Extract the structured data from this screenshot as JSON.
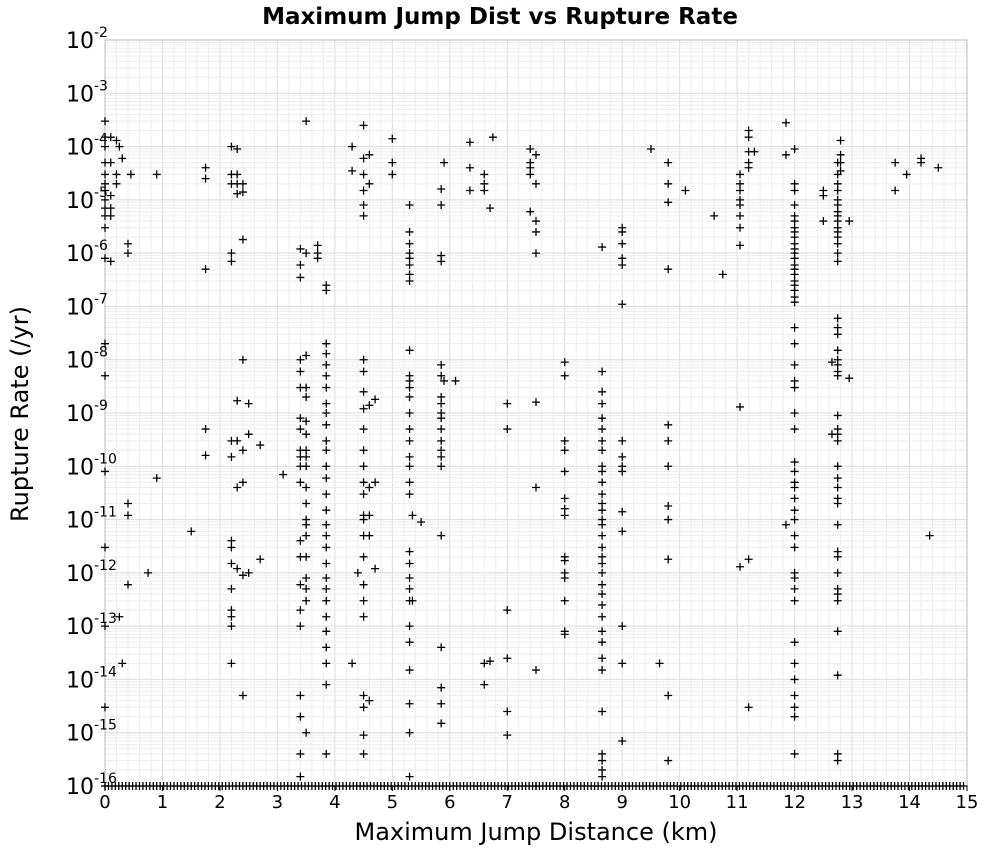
{
  "chart_data": {
    "type": "scatter",
    "title": "Maximum Jump Dist vs Rupture Rate",
    "xlabel": "Maximum Jump Distance (km)",
    "ylabel": "Rupture Rate (/yr)",
    "xlim": [
      0,
      15
    ],
    "ylim": [
      1e-16,
      0.01
    ],
    "yscale": "log",
    "grid": true,
    "marker": "+",
    "x_ticks": [
      "0",
      "1",
      "2",
      "3",
      "4",
      "5",
      "6",
      "7",
      "8",
      "9",
      "10",
      "11",
      "12",
      "13",
      "14",
      "15"
    ],
    "y_ticks": [
      {
        "base": "10",
        "exp": "-16"
      },
      {
        "base": "10",
        "exp": "-15"
      },
      {
        "base": "10",
        "exp": "-14"
      },
      {
        "base": "10",
        "exp": "-13"
      },
      {
        "base": "10",
        "exp": "-12"
      },
      {
        "base": "10",
        "exp": "-11"
      },
      {
        "base": "10",
        "exp": "-10"
      },
      {
        "base": "10",
        "exp": "-9"
      },
      {
        "base": "10",
        "exp": "-8"
      },
      {
        "base": "10",
        "exp": "-7"
      },
      {
        "base": "10",
        "exp": "-6"
      },
      {
        "base": "10",
        "exp": "-5"
      },
      {
        "base": "10",
        "exp": "-4"
      },
      {
        "base": "10",
        "exp": "-3"
      },
      {
        "base": "10",
        "exp": "-2"
      }
    ],
    "clusters": [
      {
        "x": 0.0,
        "y": [
          0.0003,
          0.00015,
          0.0001,
          5e-05,
          3e-05,
          2e-05,
          1.5e-05,
          1e-05,
          7e-06,
          5e-06,
          3e-06,
          8e-07,
          2e-08,
          5e-09,
          8e-11,
          3e-12,
          1e-13,
          3e-15,
          1e-16
        ]
      },
      {
        "x": 0.1,
        "y": [
          0.00015,
          5e-05,
          1.2e-05,
          7e-06,
          5e-06,
          7e-07
        ]
      },
      {
        "x": 0.2,
        "y": [
          0.00013,
          3e-05,
          2e-05
        ]
      },
      {
        "x": 0.25,
        "y": [
          0.0001,
          1.5e-13
        ]
      },
      {
        "x": 0.3,
        "y": [
          6e-05,
          2e-14
        ]
      },
      {
        "x": 0.4,
        "y": [
          1.5e-06,
          1e-06,
          2e-11,
          1.2e-11,
          6e-13
        ]
      },
      {
        "x": 0.45,
        "y": [
          3e-05
        ]
      },
      {
        "x": 0.75,
        "y": [
          1e-12
        ]
      },
      {
        "x": 0.9,
        "y": [
          3e-05,
          6e-11
        ]
      },
      {
        "x": 1.5,
        "y": [
          6e-12
        ]
      },
      {
        "x": 1.75,
        "y": [
          4e-05,
          2.5e-05,
          5e-07,
          5e-10,
          1.6e-10
        ]
      },
      {
        "x": 2.2,
        "y": [
          0.0001,
          3e-05,
          2e-05,
          1e-06,
          7e-07,
          3e-10,
          1.5e-10,
          4e-12,
          3e-12,
          1.5e-12,
          5e-13,
          2e-13,
          1.5e-13,
          1e-13,
          2e-14
        ]
      },
      {
        "x": 2.3,
        "y": [
          9e-05,
          3e-05,
          2e-05,
          1.3e-05,
          1.7e-09,
          3e-10,
          4e-11,
          1.2e-12
        ]
      },
      {
        "x": 2.4,
        "y": [
          2e-05,
          1.4e-05,
          1.8e-06,
          1e-08,
          2e-10,
          5e-11,
          9e-13,
          5e-15
        ]
      },
      {
        "x": 2.5,
        "y": [
          1.5e-09,
          4e-10,
          1e-12
        ]
      },
      {
        "x": 2.7,
        "y": [
          2.5e-10,
          1.8e-12
        ]
      },
      {
        "x": 3.1,
        "y": [
          7e-11
        ]
      },
      {
        "x": 3.4,
        "y": [
          1.2e-06,
          6e-07,
          3.5e-07,
          1e-08,
          6e-09,
          3e-09,
          8e-10,
          5e-10,
          2e-10,
          1.5e-10,
          1e-10,
          5e-11,
          4e-12,
          2e-12,
          6e-13,
          2e-13,
          1e-13,
          5e-15,
          2e-15,
          4e-16,
          1.5e-16
        ]
      },
      {
        "x": 3.5,
        "y": [
          0.0003,
          1e-06,
          1.2e-08,
          3e-09,
          2e-09,
          7e-10,
          4e-10,
          2e-10,
          1.5e-10,
          1e-10,
          4e-11,
          2e-11,
          1e-11,
          8e-12,
          5e-12,
          2e-12,
          8e-13,
          5e-13,
          3e-13,
          1e-15
        ]
      },
      {
        "x": 3.7,
        "y": [
          1.4e-06,
          1e-06,
          8e-07
        ]
      },
      {
        "x": 3.85,
        "y": [
          2.5e-07,
          2e-07,
          2e-08,
          1.3e-08,
          8e-09,
          5e-09,
          3e-09,
          1.5e-09,
          1e-09,
          6e-10,
          3e-10,
          2e-10,
          1e-10,
          6e-11,
          3e-11,
          1.5e-11,
          8e-12,
          5e-12,
          3e-12,
          1.5e-12,
          8e-13,
          5e-13,
          3e-13,
          1.5e-13,
          8e-14,
          4e-14,
          2e-14,
          8e-15,
          4e-16
        ]
      },
      {
        "x": 4.3,
        "y": [
          0.0001,
          3.5e-05,
          2e-14
        ]
      },
      {
        "x": 4.4,
        "y": [
          1e-12
        ]
      },
      {
        "x": 4.5,
        "y": [
          0.00025,
          6e-05,
          3e-05,
          1.5e-05,
          8e-06,
          5e-06,
          1e-08,
          6e-09,
          2.5e-09,
          1.2e-09,
          5e-10,
          2e-10,
          1e-10,
          5e-11,
          3e-11,
          1.2e-11,
          1e-11,
          5e-12,
          2e-12,
          6e-13,
          3e-13,
          1.5e-13,
          5e-15,
          3e-15,
          9e-16,
          4e-16
        ]
      },
      {
        "x": 4.6,
        "y": [
          7e-05,
          2e-05,
          1.4e-09,
          4e-11,
          1.2e-11,
          5e-12,
          4e-15
        ]
      },
      {
        "x": 4.7,
        "y": [
          1.8e-09,
          5e-11,
          1.2e-12
        ]
      },
      {
        "x": 5.0,
        "y": [
          0.00014,
          5e-05,
          3e-05
        ]
      },
      {
        "x": 5.3,
        "y": [
          8e-06,
          2.5e-06,
          1.5e-06,
          1e-06,
          8e-07,
          6e-07,
          4e-07,
          3e-07,
          1.5e-08,
          5e-09,
          4e-09,
          3e-09,
          2e-09,
          1e-09,
          5e-10,
          3e-10,
          1.5e-10,
          1e-10,
          5e-11,
          3e-11,
          2.5e-12,
          1.5e-12,
          8e-13,
          5e-13,
          3e-13,
          1e-13,
          5e-14,
          1.5e-14,
          3.5e-15,
          1e-15,
          1.5e-16
        ]
      },
      {
        "x": 5.35,
        "y": [
          1.2e-11,
          3e-13
        ]
      },
      {
        "x": 5.5,
        "y": [
          9e-12
        ]
      },
      {
        "x": 5.85,
        "y": [
          1.6e-05,
          8e-06,
          9e-07,
          7e-07,
          8e-09,
          5e-09,
          2e-09,
          1.5e-09,
          1e-09,
          8e-10,
          5e-10,
          3e-10,
          2e-10,
          1.5e-10,
          1e-10,
          5e-12,
          4e-14,
          7e-15,
          3.5e-15,
          1.5e-15
        ]
      },
      {
        "x": 5.9,
        "y": [
          5e-05,
          4e-09
        ]
      },
      {
        "x": 6.1,
        "y": [
          4e-09
        ]
      },
      {
        "x": 6.35,
        "y": [
          0.00012,
          4e-05,
          1.5e-05
        ]
      },
      {
        "x": 6.6,
        "y": [
          3e-05,
          2e-05,
          1.5e-05,
          2e-14,
          8e-15
        ]
      },
      {
        "x": 6.7,
        "y": [
          7e-06,
          2.2e-14
        ]
      },
      {
        "x": 6.75,
        "y": [
          0.00015
        ]
      },
      {
        "x": 7.0,
        "y": [
          1.5e-09,
          5e-10,
          2e-13,
          2.5e-14,
          2.5e-15,
          9e-16
        ]
      },
      {
        "x": 7.4,
        "y": [
          9e-05,
          5e-05,
          4e-05,
          3e-05,
          6e-06
        ]
      },
      {
        "x": 7.5,
        "y": [
          7e-05,
          2e-05,
          4e-06,
          2.5e-06,
          1e-06,
          1.6e-09,
          4e-11,
          1.5e-14,
          1e-16
        ]
      },
      {
        "x": 8.0,
        "y": [
          9e-09,
          5e-09,
          3e-10,
          2e-10,
          8e-11,
          2.5e-11,
          1.6e-11,
          1.2e-11,
          2e-12,
          1.7e-12,
          1e-12,
          8e-13,
          3e-13,
          8e-14,
          7e-14
        ]
      },
      {
        "x": 8.65,
        "y": [
          1.3e-06,
          6e-09,
          2.5e-09,
          1.5e-09,
          8e-10,
          5e-10,
          3e-10,
          2e-10,
          1e-10,
          8e-11,
          5e-11,
          3e-11,
          2e-11,
          1.5e-11,
          1e-11,
          8e-12,
          5e-12,
          3e-12,
          2e-12,
          1.5e-12,
          1e-12,
          6e-13,
          4e-13,
          2.5e-13,
          1.5e-13,
          8e-14,
          5e-14,
          2.5e-14,
          1.5e-14,
          2.5e-15,
          4e-16,
          3e-16,
          2e-16,
          1.5e-16
        ]
      },
      {
        "x": 9.0,
        "y": [
          3e-06,
          2.5e-06,
          1.5e-06,
          8e-07,
          6e-07,
          1.1e-07,
          3e-10,
          1.5e-10,
          1e-10,
          8e-11,
          1.4e-11,
          6e-12,
          1e-13,
          2e-14,
          7e-16
        ]
      },
      {
        "x": 9.5,
        "y": [
          9e-05
        ]
      },
      {
        "x": 9.65,
        "y": [
          2e-14
        ]
      },
      {
        "x": 9.8,
        "y": [
          5e-05,
          2e-05,
          9e-06,
          5e-07,
          6e-10,
          3e-10,
          1e-10,
          1.8e-11,
          1e-11,
          1.8e-12,
          5e-15,
          3e-16
        ]
      },
      {
        "x": 10.1,
        "y": [
          1.5e-05
        ]
      },
      {
        "x": 10.6,
        "y": [
          5e-06
        ]
      },
      {
        "x": 10.75,
        "y": [
          4e-07
        ]
      },
      {
        "x": 11.05,
        "y": [
          3e-05,
          2e-05,
          1.5e-05,
          1e-05,
          8e-06,
          5e-06,
          3e-06,
          1.4e-06,
          1.3e-09,
          1.3e-12
        ]
      },
      {
        "x": 11.2,
        "y": [
          0.0002,
          0.00015,
          8e-05,
          5e-05,
          4e-05,
          1.8e-12,
          3e-15
        ]
      },
      {
        "x": 11.3,
        "y": [
          8e-05
        ]
      },
      {
        "x": 11.85,
        "y": [
          0.00028,
          7e-05,
          8e-12
        ]
      },
      {
        "x": 12.0,
        "y": [
          9e-05,
          2e-05,
          1.5e-05,
          8e-06,
          5e-06,
          4e-06,
          3e-06,
          2.5e-06,
          2e-06,
          1.5e-06,
          1.2e-06,
          1e-06,
          8e-07,
          6e-07,
          5e-07,
          4e-07,
          3e-07,
          2.5e-07,
          2e-07,
          1.5e-07,
          1.2e-07,
          4e-08,
          2e-08,
          8e-09,
          4e-09,
          3e-09,
          1e-09,
          5e-10,
          1.2e-10,
          8e-11,
          5e-11,
          4e-11,
          2.5e-11,
          1.5e-11,
          1e-11,
          5e-12,
          3e-12,
          1e-12,
          8e-13,
          5e-13,
          3e-13,
          5e-14,
          2e-14,
          1e-14,
          5e-15,
          3e-15,
          2e-15,
          4e-16
        ]
      },
      {
        "x": 12.5,
        "y": [
          1.5e-05,
          1.2e-05,
          4e-06
        ]
      },
      {
        "x": 12.65,
        "y": [
          9e-09,
          4e-10
        ]
      },
      {
        "x": 12.75,
        "y": [
          5e-05,
          3e-05,
          2e-05,
          1.5e-05,
          1e-05,
          8e-06,
          6e-06,
          5e-06,
          4e-06,
          3e-06,
          2.5e-06,
          2e-06,
          1.5e-06,
          1e-06,
          7e-07,
          6e-08,
          4e-08,
          3e-08,
          1.5e-08,
          1e-08,
          8e-09,
          6e-09,
          5e-09,
          9e-10,
          5e-10,
          4e-10,
          3e-10,
          1e-10,
          6e-11,
          4e-11,
          2.5e-11,
          2e-11,
          8e-12,
          2.5e-12,
          2e-12,
          1e-12,
          5e-13,
          4e-13,
          3e-13,
          8e-14,
          1.2e-14,
          4e-16,
          3e-16
        ]
      },
      {
        "x": 12.8,
        "y": [
          0.00013,
          7e-05,
          5e-05,
          3.5e-05
        ]
      },
      {
        "x": 12.95,
        "y": [
          4e-06,
          4.5e-09
        ]
      },
      {
        "x": 13.75,
        "y": [
          5e-05,
          1.5e-05
        ]
      },
      {
        "x": 13.95,
        "y": [
          3e-05
        ]
      },
      {
        "x": 14.2,
        "y": [
          6e-05,
          5e-05
        ]
      },
      {
        "x": 14.35,
        "y": [
          5e-12
        ]
      },
      {
        "x": 14.5,
        "y": [
          4e-05
        ]
      }
    ],
    "floor_row": {
      "y": 1e-16,
      "x_range": [
        0,
        15
      ]
    }
  }
}
